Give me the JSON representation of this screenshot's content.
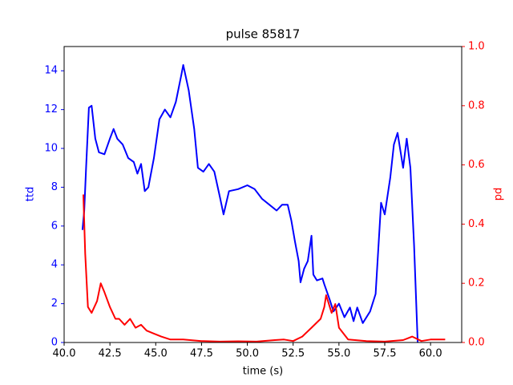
{
  "chart_data": {
    "type": "line",
    "title": "pulse 85817",
    "xlabel": "time (s)",
    "ylabel": "ttd",
    "y2label": "pd",
    "xlim": [
      40,
      61.7
    ],
    "ylim": [
      0,
      15.25
    ],
    "y2lim": [
      0,
      1
    ],
    "xticks": [
      {
        "value": 40,
        "label": "40.0"
      },
      {
        "value": 42.5,
        "label": "42.5"
      },
      {
        "value": 45,
        "label": "45.0"
      },
      {
        "value": 47.5,
        "label": "47.5"
      },
      {
        "value": 50,
        "label": "50.0"
      },
      {
        "value": 52.5,
        "label": "52.5"
      },
      {
        "value": 55,
        "label": "55.0"
      },
      {
        "value": 57.5,
        "label": "57.5"
      },
      {
        "value": 60,
        "label": "60.0"
      }
    ],
    "yticks": [
      0,
      2,
      4,
      6,
      8,
      10,
      12,
      14
    ],
    "y2ticks": [
      {
        "value": 0,
        "label": "0.0"
      },
      {
        "value": 0.2,
        "label": "0.2"
      },
      {
        "value": 0.4,
        "label": "0.4"
      },
      {
        "value": 0.6,
        "label": "0.6"
      },
      {
        "value": 0.8,
        "label": "0.8"
      },
      {
        "value": 1,
        "label": "1.0"
      }
    ],
    "series": [
      {
        "name": "ttd",
        "color": "#0000ff",
        "axis": "y",
        "x": [
          41.0,
          41.1,
          41.2,
          41.35,
          41.5,
          41.7,
          41.9,
          42.2,
          42.5,
          42.7,
          42.9,
          43.2,
          43.5,
          43.8,
          44.0,
          44.2,
          44.4,
          44.6,
          44.9,
          45.2,
          45.5,
          45.8,
          46.1,
          46.4,
          46.5,
          46.8,
          47.1,
          47.3,
          47.6,
          47.9,
          48.2,
          48.5,
          48.7,
          49.0,
          49.5,
          50.0,
          50.4,
          50.8,
          51.2,
          51.6,
          51.9,
          52.2,
          52.4,
          52.6,
          52.8,
          52.9,
          53.1,
          53.3,
          53.5,
          53.6,
          53.8,
          54.1,
          54.2,
          54.5,
          54.7,
          55.0,
          55.3,
          55.6,
          55.8,
          56.0,
          56.3,
          56.7,
          57.0,
          57.3,
          57.5,
          57.8,
          58.0,
          58.2,
          58.5,
          58.7,
          58.9,
          59.1,
          59.3
        ],
        "values": [
          5.8,
          6.8,
          9,
          12.1,
          12.2,
          10.5,
          9.8,
          9.7,
          10.5,
          11.0,
          10.5,
          10.2,
          9.5,
          9.3,
          8.7,
          9.2,
          7.8,
          8.0,
          9.5,
          11.5,
          12.0,
          11.6,
          12.4,
          13.8,
          14.3,
          13.0,
          11.0,
          9.0,
          8.8,
          9.2,
          8.8,
          7.5,
          6.6,
          7.8,
          7.9,
          8.1,
          7.9,
          7.4,
          7.1,
          6.8,
          7.1,
          7.1,
          6.3,
          5.2,
          4.2,
          3.1,
          3.8,
          4.2,
          5.5,
          3.5,
          3.2,
          3.3,
          3.0,
          2.2,
          1.6,
          2.0,
          1.3,
          1.8,
          1.1,
          1.8,
          1.0,
          1.6,
          2.5,
          7.2,
          6.6,
          8.5,
          10.2,
          10.8,
          9.0,
          10.5,
          9.0,
          5.0,
          0.0
        ]
      },
      {
        "name": "pd",
        "color": "#ff0000",
        "axis": "y2",
        "x": [
          41.05,
          41.15,
          41.3,
          41.5,
          41.8,
          42.0,
          42.2,
          42.5,
          42.8,
          43.0,
          43.3,
          43.6,
          43.9,
          44.2,
          44.5,
          44.9,
          45.3,
          45.8,
          46.5,
          47.5,
          48.5,
          49.5,
          50.5,
          51.5,
          52.0,
          52.5,
          53.0,
          53.5,
          54.0,
          54.2,
          54.3,
          54.6,
          54.8,
          55.0,
          55.5,
          56.5,
          57.5,
          58.5,
          59.0,
          59.5,
          60.0,
          60.8
        ],
        "values": [
          0.5,
          0.3,
          0.12,
          0.1,
          0.14,
          0.2,
          0.17,
          0.12,
          0.08,
          0.08,
          0.06,
          0.08,
          0.05,
          0.06,
          0.04,
          0.03,
          0.02,
          0.01,
          0.01,
          0.005,
          0.003,
          0.004,
          0.003,
          0.008,
          0.01,
          0.005,
          0.02,
          0.05,
          0.08,
          0.12,
          0.16,
          0.1,
          0.13,
          0.05,
          0.01,
          0.005,
          0.003,
          0.008,
          0.02,
          0.005,
          0.01,
          0.01
        ]
      }
    ]
  }
}
